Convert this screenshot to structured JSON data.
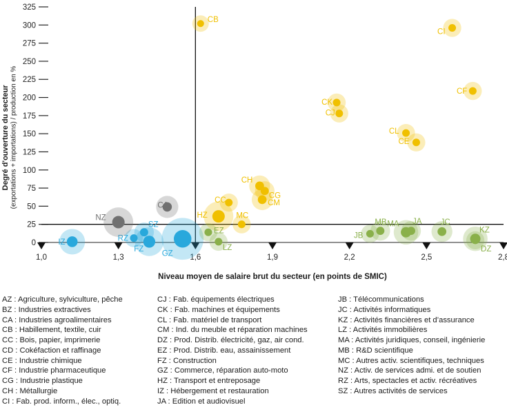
{
  "chart_data": {
    "type": "scatter",
    "title": "",
    "xlabel": "Niveau moyen de salaire brut du secteur (en points de SMIC)",
    "ylabel": "Degré d'ouverture du secteur",
    "ylabel_sub": "(exportations + importations) / production en %",
    "xlim": [
      1.0,
      2.8
    ],
    "ylim": [
      0,
      325
    ],
    "x_ticks": [
      1.0,
      1.3,
      1.6,
      1.9,
      2.2,
      2.5,
      2.8
    ],
    "x_tick_labels": [
      "1,0",
      "1,3",
      "1,6",
      "1,9",
      "2,2",
      "2,5",
      "2,8"
    ],
    "y_ticks": [
      0,
      25,
      50,
      75,
      100,
      125,
      150,
      175,
      200,
      225,
      250,
      275,
      300,
      325
    ],
    "y_tick_labels": [
      "0",
      "25",
      "50",
      "75",
      "100",
      "125",
      "150",
      "175",
      "200",
      "225",
      "250",
      "275",
      "300",
      "325"
    ],
    "reference_lines": {
      "x": 1.6,
      "y": 25
    },
    "grid": false,
    "bubble_size_note": "bubble area reflects relative sector size",
    "series": [
      {
        "group": "blue",
        "color": "#29a8dc",
        "points": [
          {
            "label": "IZ",
            "x": 1.12,
            "y": 1,
            "size": 0.6
          },
          {
            "label": "RZ",
            "x": 1.36,
            "y": 6,
            "size": 0.3
          },
          {
            "label": "SZ",
            "x": 1.4,
            "y": 14,
            "size": 0.35
          },
          {
            "label": "FZ",
            "x": 1.42,
            "y": 1,
            "size": 0.75
          },
          {
            "label": "GZ",
            "x": 1.55,
            "y": 5,
            "size": 1.6
          }
        ]
      },
      {
        "group": "grey",
        "color": "#707070",
        "points": [
          {
            "label": "NZ",
            "x": 1.3,
            "y": 28,
            "size": 0.8
          },
          {
            "label": "CA",
            "x": 1.49,
            "y": 49,
            "size": 0.45
          }
        ]
      },
      {
        "group": "yellow",
        "color": "#f0c000",
        "points": [
          {
            "label": "CB",
            "x": 1.62,
            "y": 302,
            "size": 0.25
          },
          {
            "label": "HZ",
            "x": 1.69,
            "y": 36,
            "size": 0.8
          },
          {
            "label": "CC",
            "x": 1.73,
            "y": 55,
            "size": 0.3
          },
          {
            "label": "MC",
            "x": 1.78,
            "y": 25,
            "size": 0.3
          },
          {
            "label": "CH",
            "x": 1.85,
            "y": 78,
            "size": 0.4
          },
          {
            "label": "CG",
            "x": 1.87,
            "y": 71,
            "size": 0.35
          },
          {
            "label": "CM",
            "x": 1.86,
            "y": 59,
            "size": 0.4
          },
          {
            "label": "CK",
            "x": 2.15,
            "y": 193,
            "size": 0.3
          },
          {
            "label": "CJ",
            "x": 2.16,
            "y": 178,
            "size": 0.3
          },
          {
            "label": "CL",
            "x": 2.42,
            "y": 151,
            "size": 0.3
          },
          {
            "label": "CE",
            "x": 2.46,
            "y": 138,
            "size": 0.3
          },
          {
            "label": "CI",
            "x": 2.6,
            "y": 296,
            "size": 0.3
          },
          {
            "label": "CF",
            "x": 2.68,
            "y": 209,
            "size": 0.3
          }
        ]
      },
      {
        "group": "green",
        "color": "#8ab04a",
        "points": [
          {
            "label": "EZ",
            "x": 1.65,
            "y": 14,
            "size": 0.3
          },
          {
            "label": "LZ",
            "x": 1.69,
            "y": 1,
            "size": 0.3
          },
          {
            "label": "JB",
            "x": 2.28,
            "y": 12,
            "size": 0.3
          },
          {
            "label": "MB",
            "x": 2.32,
            "y": 16,
            "size": 0.35
          },
          {
            "label": "MA",
            "x": 2.42,
            "y": 14,
            "size": 0.55
          },
          {
            "label": "JA",
            "x": 2.44,
            "y": 16,
            "size": 0.35
          },
          {
            "label": "JC",
            "x": 2.56,
            "y": 15,
            "size": 0.4
          },
          {
            "label": "KZ",
            "x": 2.69,
            "y": 5,
            "size": 0.55
          },
          {
            "label": "DZ",
            "x": 2.69,
            "y": 3,
            "size": 0.3
          }
        ]
      }
    ]
  },
  "legend_columns": [
    [
      "AZ : Agriculture, sylviculture, pêche",
      "BZ : Industries extractives",
      "CA : Industries agroalimentaires",
      "CB : Habillement, textile, cuir",
      "CC : Bois, papier, imprimerie",
      "CD : Cokéfaction et raffinage",
      "CE : Industrie chimique",
      "CF : Industrie pharmaceutique",
      "CG : Industrie plastique",
      "CH : Métallurgie",
      "CI : Fab. prod. inform., élec., optiq."
    ],
    [
      "CJ : Fab. équipements électriques",
      "CK : Fab. machines et équipements",
      "CL : Fab. matériel de transport",
      "CM : Ind. du meuble et réparation machines",
      "DZ : Prod. Distrib. électricité, gaz, air cond.",
      "EZ : Prod. Distrib. eau, assainissement",
      "FZ : Construction",
      "GZ : Commerce, réparation auto-moto",
      "HZ : Transport et entreposage",
      "IZ : Hébergement et restauration",
      "JA : Edition et audiovisuel"
    ],
    [
      "JB : Télécommunications",
      "JC : Activités informatiques",
      "KZ : Activités financières et d’assurance",
      "LZ : Activités immobilières",
      "MA : Activités juridiques, conseil, ingénierie",
      "MB : R&D scientifique",
      "MC : Autres activ. scientifiques, techniques",
      "NZ : Activ. de services admi. et de soutien",
      "RZ : Arts, spectacles et activ. récréatives",
      "SZ : Autres activités de services"
    ]
  ]
}
